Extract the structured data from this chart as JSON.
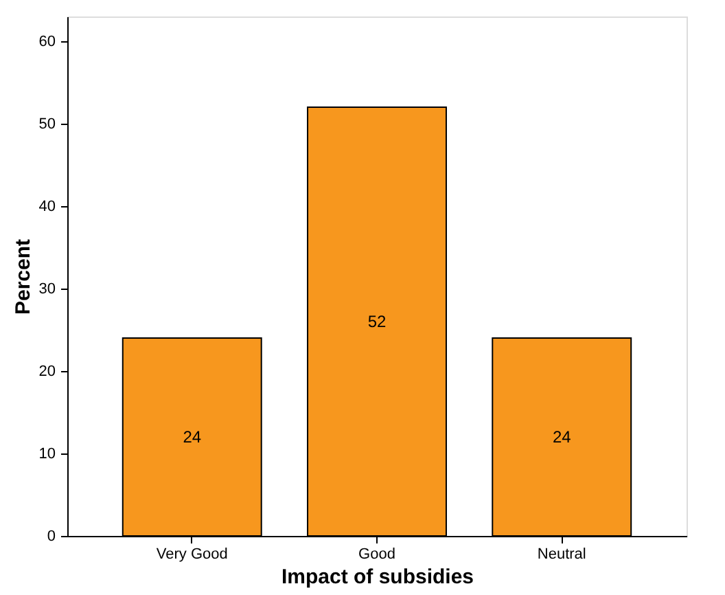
{
  "chart_data": {
    "type": "bar",
    "xlabel": "Impact of subsidies",
    "ylabel": "Percent",
    "categories": [
      "Very Good",
      "Good",
      "Neutral"
    ],
    "values": [
      24,
      52,
      24
    ],
    "color": "#f7971e",
    "ylim": [
      0,
      63
    ],
    "yticks": [
      0,
      10,
      20,
      30,
      40,
      50,
      60
    ],
    "grid": false,
    "data_labels": true
  }
}
